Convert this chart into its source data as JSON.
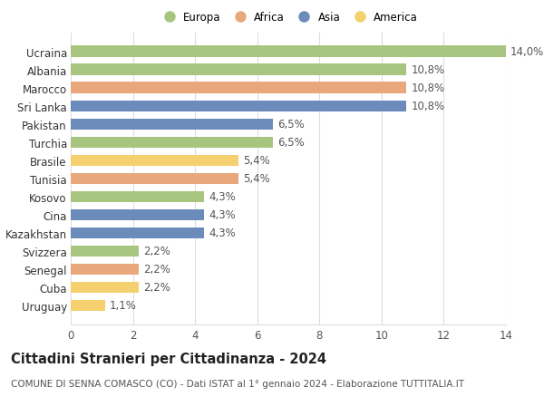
{
  "countries": [
    "Ucraina",
    "Albania",
    "Marocco",
    "Sri Lanka",
    "Pakistan",
    "Turchia",
    "Brasile",
    "Tunisia",
    "Kosovo",
    "Cina",
    "Kazakhstan",
    "Svizzera",
    "Senegal",
    "Cuba",
    "Uruguay"
  ],
  "values": [
    14.0,
    10.8,
    10.8,
    10.8,
    6.5,
    6.5,
    5.4,
    5.4,
    4.3,
    4.3,
    4.3,
    2.2,
    2.2,
    2.2,
    1.1
  ],
  "labels": [
    "14,0%",
    "10,8%",
    "10,8%",
    "10,8%",
    "6,5%",
    "6,5%",
    "5,4%",
    "5,4%",
    "4,3%",
    "4,3%",
    "4,3%",
    "2,2%",
    "2,2%",
    "2,2%",
    "1,1%"
  ],
  "continents": [
    "Europa",
    "Europa",
    "Africa",
    "Asia",
    "Asia",
    "Europa",
    "America",
    "Africa",
    "Europa",
    "Asia",
    "Asia",
    "Europa",
    "Africa",
    "America",
    "America"
  ],
  "colors": {
    "Europa": "#a8c580",
    "Africa": "#e8a87c",
    "Asia": "#6b8cba",
    "America": "#f5d06e"
  },
  "legend_order": [
    "Europa",
    "Africa",
    "Asia",
    "America"
  ],
  "title": "Cittadini Stranieri per Cittadinanza - 2024",
  "subtitle": "COMUNE DI SENNA COMASCO (CO) - Dati ISTAT al 1° gennaio 2024 - Elaborazione TUTTITALIA.IT",
  "xlim": [
    0,
    14
  ],
  "xticks": [
    0,
    2,
    4,
    6,
    8,
    10,
    12,
    14
  ],
  "background_color": "#ffffff",
  "bar_height": 0.62,
  "grid_color": "#dddddd",
  "label_fontsize": 8.5,
  "tick_fontsize": 8.5,
  "title_fontsize": 10.5,
  "subtitle_fontsize": 7.5
}
